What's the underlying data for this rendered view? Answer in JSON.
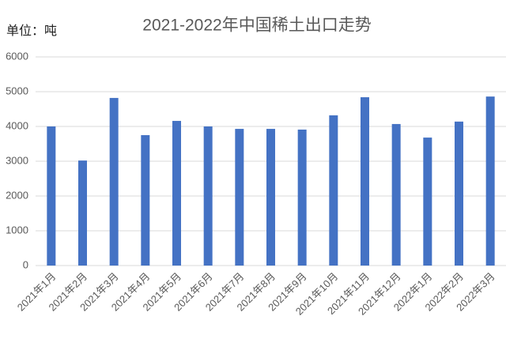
{
  "chart_data": {
    "type": "bar",
    "title": "2021-2022年中国稀土出口走势",
    "unit_label": "单位：吨",
    "categories": [
      "2021年1月",
      "2021年2月",
      "2021年3月",
      "2021年4月",
      "2021年5月",
      "2021年6月",
      "2021年7月",
      "2021年8月",
      "2021年9月",
      "2021年10月",
      "2021年11月",
      "2021年12月",
      "2022年1月",
      "2022年2月",
      "2022年3月"
    ],
    "values": [
      4000,
      3020,
      4820,
      3750,
      4160,
      4000,
      3930,
      3930,
      3910,
      4320,
      4840,
      4070,
      3680,
      4140,
      4860
    ],
    "color": "#4472c4",
    "ylim": [
      0,
      6000
    ],
    "yticks": [
      0,
      1000,
      2000,
      3000,
      4000,
      5000,
      6000
    ],
    "grid": true
  }
}
